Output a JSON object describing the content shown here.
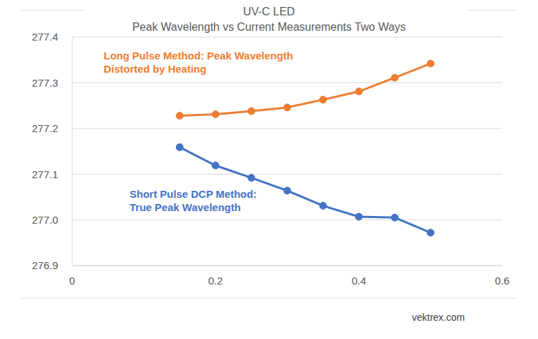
{
  "chart_data": {
    "type": "line",
    "title": "UV-C LED",
    "subtitle": "Peak Wavelength vs Current Measurements Two Ways",
    "x": [
      0.15,
      0.2,
      0.25,
      0.3,
      0.35,
      0.4,
      0.45,
      0.5
    ],
    "series": [
      {
        "color": "#ed7d31",
        "marker": "circle",
        "line_style": "solid",
        "values": [
          277.228,
          277.231,
          277.238,
          277.246,
          277.263,
          277.281,
          277.311,
          277.342
        ]
      },
      {
        "color": "#4472c4",
        "marker": "circle",
        "line_style": "solid",
        "values": [
          277.159,
          277.119,
          277.092,
          277.064,
          277.031,
          277.007,
          277.005,
          276.972
        ]
      }
    ],
    "annotations": [
      [
        "Long Pulse Method: Peak Wavelength",
        "Distorted by Heating"
      ],
      [
        "Short Pulse DCP Method:",
        "True Peak Wavelength"
      ]
    ],
    "footer": "vektrex.com",
    "xlim": [
      0,
      0.6
    ],
    "xticks": [
      0,
      0.2,
      0.4,
      0.6
    ],
    "ylim": [
      276.9,
      277.4
    ],
    "yticks": [
      276.9,
      {
        "value": 277,
        "label": "277.0"
      },
      277.1,
      277.2,
      277.3,
      277.4
    ],
    "grid": true,
    "legend": "none"
  }
}
